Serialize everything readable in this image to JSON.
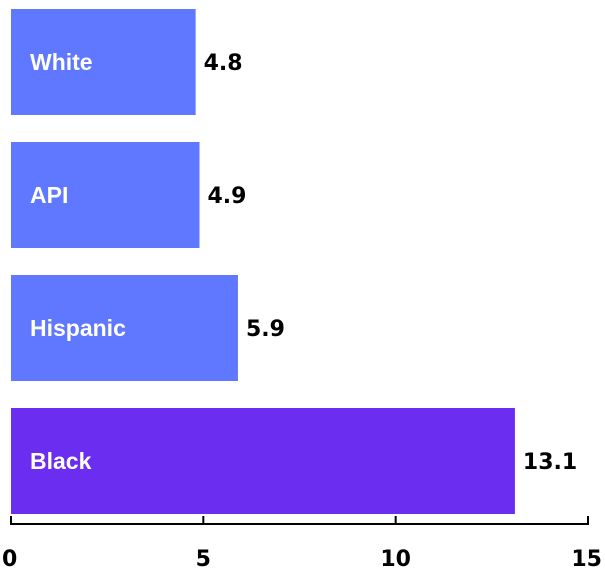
{
  "chart_data": {
    "type": "bar",
    "orientation": "horizontal",
    "categories": [
      "White",
      "API",
      "Hispanic",
      "Black"
    ],
    "values": [
      4.8,
      4.9,
      5.9,
      13.1
    ],
    "value_labels": [
      "4.8",
      "4.9",
      "5.9",
      "13.1"
    ],
    "xlim": [
      0,
      15
    ],
    "xticks": [
      0,
      5,
      10,
      15
    ],
    "xtick_labels": [
      "0",
      "5",
      "10",
      "15"
    ],
    "title": "",
    "xlabel": "",
    "ylabel": "",
    "grid": false,
    "legend": "none",
    "colors": {
      "default_bar": "#5f78ff",
      "highlight_bar": "#6b2df0",
      "category_label": "#ffffff",
      "text": "#000000"
    },
    "highlight_category": "Black"
  }
}
